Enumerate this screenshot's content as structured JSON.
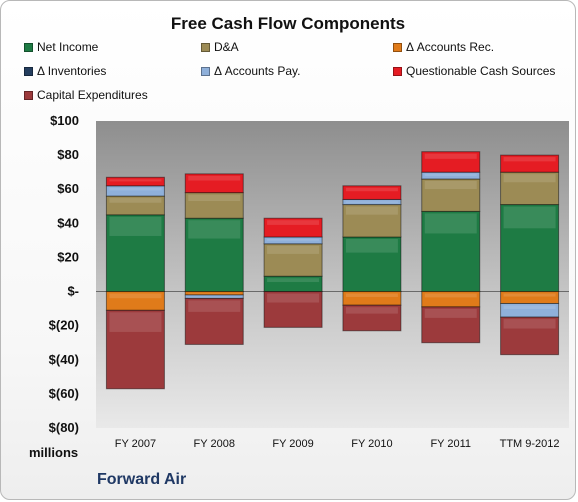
{
  "chart_data": {
    "type": "bar",
    "stacked": true,
    "title": "Free Cash Flow Components",
    "unit_label": "millions",
    "company": "Forward Air",
    "categories": [
      "FY 2007",
      "FY 2008",
      "FY 2009",
      "FY 2010",
      "FY 2011",
      "TTM 9-2012"
    ],
    "ylim": [
      -80,
      100
    ],
    "yticks": [
      100,
      80,
      60,
      40,
      20,
      0,
      -20,
      -40,
      -60,
      -80
    ],
    "ytick_labels": [
      "$100",
      "$80",
      "$60",
      "$40",
      "$20",
      "$-",
      "$(20)",
      "$(40)",
      "$(60)",
      "$(80)"
    ],
    "legend_position": "top",
    "grid": false,
    "series": [
      {
        "name": "Net Income",
        "color": "#1e7b44",
        "values": [
          45,
          43,
          9,
          32,
          47,
          51
        ]
      },
      {
        "name": "D&A",
        "color": "#9c8b55",
        "values": [
          11,
          15,
          19,
          19,
          19,
          19
        ]
      },
      {
        "name": "Δ Accounts Rec.",
        "color": "#e07b1a",
        "values": [
          -11,
          -2,
          0,
          -8,
          -9,
          -7
        ]
      },
      {
        "name": "Δ Inventories",
        "color": "#243e5e",
        "values": [
          0,
          0,
          0,
          0,
          0,
          0
        ]
      },
      {
        "name": "Δ Accounts Pay.",
        "color": "#8fb0da",
        "values": [
          6,
          -2,
          4,
          3,
          4,
          -8
        ]
      },
      {
        "name": "Questionable Cash Sources",
        "color": "#e51c23",
        "values": [
          5,
          11,
          11,
          8,
          12,
          10
        ]
      },
      {
        "name": "Capital Expenditures",
        "color": "#9c3a3c",
        "values": [
          -46,
          -27,
          -21,
          -15,
          -21,
          -22
        ]
      }
    ]
  }
}
